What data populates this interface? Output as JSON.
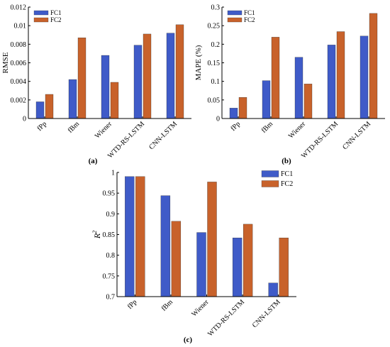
{
  "colors": {
    "fc1": "#3F5BC8",
    "fc2": "#C8622B",
    "axis": "#000000"
  },
  "chart_data": [
    {
      "id": "a",
      "type": "bar",
      "panel_label": "(a)",
      "ylabel": "RMSE",
      "ylim": [
        0,
        0.012
      ],
      "yticks": [
        "0",
        "0.002",
        "0.004",
        "0.006",
        "0.008",
        "0.01",
        "0.012"
      ],
      "categories": [
        "fPp",
        "fBm",
        "Wiener",
        "WTD-RS-LSTM",
        "CNN-LSTM"
      ],
      "series": [
        {
          "name": "FC1",
          "values": [
            0.0018,
            0.0042,
            0.0068,
            0.0079,
            0.0092
          ]
        },
        {
          "name": "FC2",
          "values": [
            0.0026,
            0.0087,
            0.0039,
            0.0091,
            0.0101
          ]
        }
      ],
      "legend": "top-left"
    },
    {
      "id": "b",
      "type": "bar",
      "panel_label": "(b)",
      "ylabel": "MAPE (%)",
      "ylim": [
        0,
        0.3
      ],
      "yticks": [
        "0",
        "0.05",
        "0.1",
        "0.15",
        "0.2",
        "0.25",
        "0.3"
      ],
      "categories": [
        "fPp",
        "fBm",
        "Wiener",
        "WTD-RS-LSTM",
        "CNN-LSTM"
      ],
      "series": [
        {
          "name": "FC1",
          "values": [
            0.028,
            0.102,
            0.165,
            0.198,
            0.222
          ]
        },
        {
          "name": "FC2",
          "values": [
            0.057,
            0.219,
            0.093,
            0.234,
            0.283
          ]
        }
      ],
      "legend": "top-left"
    },
    {
      "id": "c",
      "type": "bar",
      "panel_label": "(c)",
      "ylabel": "R",
      "ylabel_sup": "2",
      "ylim": [
        0.7,
        1.0
      ],
      "yticks": [
        "0.7",
        "0.75",
        "0.8",
        "0.85",
        "0.9",
        "0.95",
        "1"
      ],
      "categories": [
        "fPp",
        "fBm",
        "Wiener",
        "WTD-RS-LSTM",
        "CNN-LSTM"
      ],
      "series": [
        {
          "name": "FC1",
          "values": [
            0.99,
            0.944,
            0.855,
            0.842,
            0.733
          ]
        },
        {
          "name": "FC2",
          "values": [
            0.99,
            0.882,
            0.977,
            0.875,
            0.842
          ]
        }
      ],
      "legend": "top-right"
    }
  ]
}
